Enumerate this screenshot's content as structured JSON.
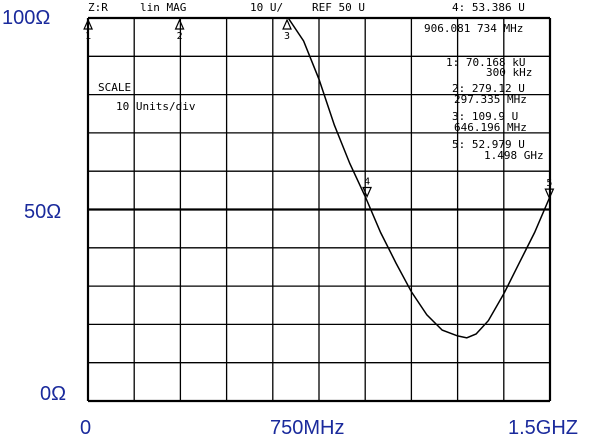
{
  "header": {
    "channel": "Z:R",
    "format": "lin MAG",
    "scale": "10 U/",
    "reference": "REF 50 U",
    "active_marker_value": "4: 53.386 U",
    "active_marker_freq": "906.081 734 MHz"
  },
  "scale_box": {
    "title": "SCALE",
    "value": "10 Units/div"
  },
  "marker_table": [
    {
      "value": "1: 70.168 kU",
      "freq": "300 kHz"
    },
    {
      "value": "2: 279.12 U",
      "freq": "297.335 MHz"
    },
    {
      "value": "3: 109.9 U",
      "freq": "646.196 MHz"
    },
    {
      "value": "5: 52.979 U",
      "freq": "1.498 GHz"
    }
  ],
  "y_axis_labels": [
    "100Ω",
    "50Ω",
    "0Ω"
  ],
  "x_axis_labels": [
    "0",
    "750MHz",
    "1.5GHZ"
  ],
  "chart_data": {
    "type": "line",
    "xlabel": "",
    "ylabel": "",
    "x_unit": "MHz",
    "y_unit": "Ohm",
    "xlim": [
      0,
      1500
    ],
    "ylim": [
      0,
      100
    ],
    "grid": true,
    "x_ticks": [
      0,
      750,
      1500
    ],
    "y_ticks": [
      0,
      50,
      100
    ],
    "series": [
      {
        "x": [
          0,
          100,
          200,
          300,
          400,
          500,
          600,
          650,
          700,
          750,
          800,
          850,
          900,
          950,
          1000,
          1050,
          1100,
          1150,
          1200,
          1230,
          1260,
          1300,
          1350,
          1400,
          1450,
          1498
        ],
        "y": [
          100,
          100,
          100,
          100,
          100,
          100,
          100,
          100,
          94,
          84,
          72,
          62,
          53.4,
          44,
          36,
          28.5,
          22.5,
          18.5,
          17,
          16.5,
          17.5,
          21,
          28,
          36,
          44,
          53
        ]
      }
    ],
    "markers": [
      {
        "label": "1",
        "x": 0.3,
        "y": 100
      },
      {
        "label": "2",
        "x": 297.335,
        "y": 100
      },
      {
        "label": "3",
        "x": 646.196,
        "y": 100
      },
      {
        "label": "4",
        "x": 906.08,
        "y": 53.386
      },
      {
        "label": "5",
        "x": 1498,
        "y": 52.979
      }
    ]
  }
}
